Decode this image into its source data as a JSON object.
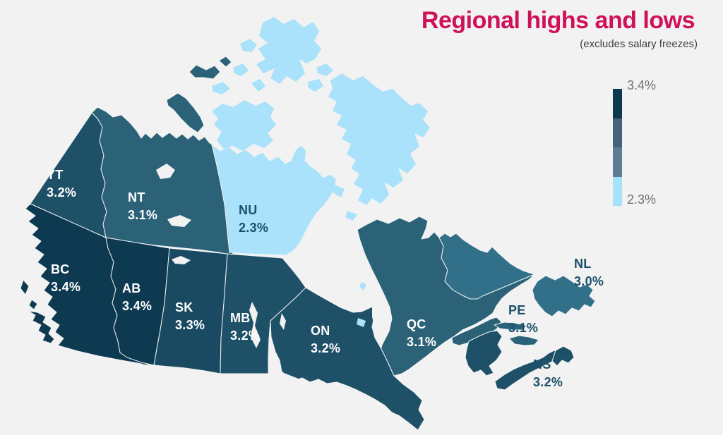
{
  "title": "Regional highs and lows",
  "subtitle": "(excludes salary freezes)",
  "accent_color": "#d1105a",
  "background_color": "#f2f2f2",
  "legend": {
    "max_label": "3.4%",
    "min_label": "2.3%",
    "colors": [
      "#0c3950",
      "#45617c",
      "#5e7d93",
      "#a5e2fc"
    ]
  },
  "chart_data": {
    "type": "choropleth",
    "title": "Regional highs and lows",
    "subtitle": "(excludes salary freezes)",
    "unit": "percent salary increase",
    "scale": {
      "min": "2.3%",
      "max": "3.4%"
    },
    "value_colors": {
      "3.4%": "#0e3a51",
      "3.3%": "#1a4a61",
      "3.2%": "#1e5068",
      "3.1%": "#2b6278",
      "3.0%": "#327089",
      "2.3%": "#a9e2fa"
    },
    "regions": [
      {
        "code": "YT",
        "value": "3.2%",
        "labeled": true
      },
      {
        "code": "NT",
        "value": "3.1%",
        "labeled": true
      },
      {
        "code": "NU",
        "value": "2.3%",
        "labeled": true
      },
      {
        "code": "BC",
        "value": "3.4%",
        "labeled": true
      },
      {
        "code": "AB",
        "value": "3.4%",
        "labeled": true
      },
      {
        "code": "SK",
        "value": "3.3%",
        "labeled": true
      },
      {
        "code": "MB",
        "value": "3.2%",
        "labeled": true
      },
      {
        "code": "ON",
        "value": "3.2%",
        "labeled": true
      },
      {
        "code": "QC",
        "value": "3.1%",
        "labeled": true
      },
      {
        "code": "NL",
        "value": "3.0%",
        "labeled": true
      },
      {
        "code": "PE",
        "value": "3.1%",
        "labeled": true
      },
      {
        "code": "NS",
        "value": "3.2%",
        "labeled": true
      },
      {
        "code": "NB",
        "value": "3.2%",
        "labeled": false
      }
    ]
  }
}
